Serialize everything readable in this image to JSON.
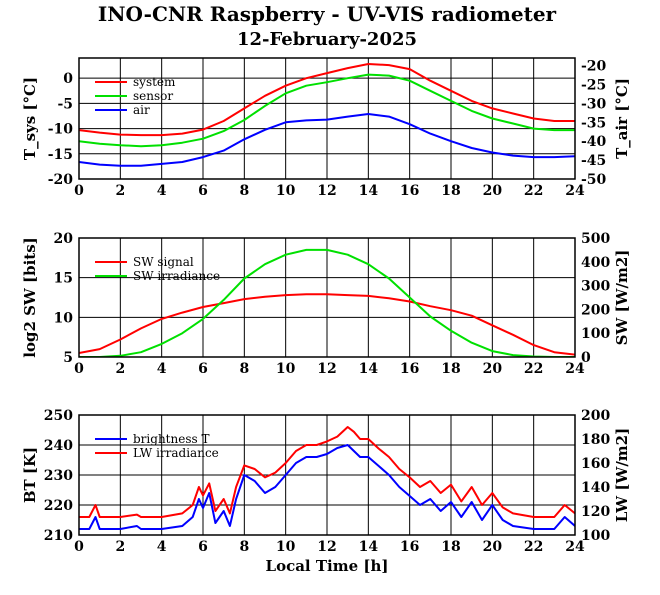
{
  "title": "INO-CNR Raspberry - UV-VIS radiometer",
  "subtitle": "12-February-2025",
  "chart_data": [
    {
      "type": "line",
      "xlabel": "",
      "ylabel": "T_sys [°C]",
      "y2label": "T_air [°C]",
      "xlim": [
        0,
        24
      ],
      "ylim": [
        -20,
        4
      ],
      "y2lim": [
        -50,
        -18
      ],
      "xticks": [
        0,
        2,
        4,
        6,
        8,
        10,
        12,
        14,
        16,
        18,
        20,
        22,
        24
      ],
      "yticks": [
        -20,
        -15,
        -10,
        -5,
        0
      ],
      "y2ticks": [
        -50,
        -45,
        -40,
        -35,
        -30,
        -25,
        -20
      ],
      "grid": true,
      "legend": "top-left",
      "series": [
        {
          "name": "system",
          "color": "#ff0000",
          "axis": "left",
          "x": [
            0,
            1,
            2,
            3,
            4,
            5,
            6,
            7,
            8,
            9,
            10,
            11,
            12,
            13,
            14,
            15,
            16,
            17,
            18,
            19,
            20,
            21,
            22,
            23,
            24
          ],
          "y": [
            -10.3,
            -10.8,
            -11.2,
            -11.3,
            -11.3,
            -11.0,
            -10.2,
            -8.5,
            -6.0,
            -3.5,
            -1.5,
            0.0,
            1.0,
            2.0,
            2.8,
            2.6,
            1.8,
            -0.5,
            -2.5,
            -4.5,
            -6.0,
            -7.0,
            -8.0,
            -8.5,
            -8.5
          ]
        },
        {
          "name": "sensor",
          "color": "#00e000",
          "axis": "left",
          "x": [
            0,
            1,
            2,
            3,
            4,
            5,
            6,
            7,
            8,
            9,
            10,
            11,
            12,
            13,
            14,
            15,
            16,
            17,
            18,
            19,
            20,
            21,
            22,
            23,
            24
          ],
          "y": [
            -12.5,
            -13.0,
            -13.3,
            -13.5,
            -13.3,
            -12.8,
            -12.0,
            -10.5,
            -8.3,
            -5.5,
            -3.0,
            -1.5,
            -0.8,
            0.0,
            0.7,
            0.5,
            -0.5,
            -2.5,
            -4.5,
            -6.5,
            -8.0,
            -9.0,
            -10.0,
            -10.3,
            -10.3
          ]
        },
        {
          "name": "air",
          "color": "#0000ff",
          "axis": "right",
          "x": [
            0,
            1,
            2,
            3,
            4,
            5,
            6,
            7,
            8,
            9,
            10,
            11,
            12,
            13,
            14,
            15,
            16,
            17,
            18,
            19,
            20,
            21,
            22,
            23,
            24
          ],
          "y": [
            -45.5,
            -46.2,
            -46.5,
            -46.5,
            -46.0,
            -45.5,
            -44.2,
            -42.5,
            -39.5,
            -37.0,
            -35.0,
            -34.5,
            -34.3,
            -33.5,
            -32.8,
            -33.5,
            -35.5,
            -38.0,
            -40.0,
            -41.8,
            -43.0,
            -43.8,
            -44.2,
            -44.2,
            -44.0
          ]
        }
      ]
    },
    {
      "type": "line",
      "xlabel": "",
      "ylabel": "log2 SW [bits]",
      "y2label": "SW [W/m2]",
      "xlim": [
        0,
        24
      ],
      "ylim": [
        5,
        20
      ],
      "y2lim": [
        0,
        500
      ],
      "xticks": [
        0,
        2,
        4,
        6,
        8,
        10,
        12,
        14,
        16,
        18,
        20,
        22,
        24
      ],
      "yticks": [
        5,
        10,
        15,
        20
      ],
      "y2ticks": [
        0,
        100,
        200,
        300,
        400,
        500
      ],
      "grid": true,
      "legend": "top-left",
      "series": [
        {
          "name": "SW signal",
          "color": "#ff0000",
          "axis": "left",
          "x": [
            0,
            1,
            2,
            3,
            4,
            5,
            6,
            7,
            8,
            9,
            10,
            11,
            12,
            13,
            14,
            15,
            16,
            17,
            18,
            19,
            20,
            21,
            22,
            23,
            24
          ],
          "y": [
            5.5,
            6.0,
            7.2,
            8.6,
            9.8,
            10.6,
            11.3,
            11.8,
            12.3,
            12.6,
            12.8,
            12.9,
            12.9,
            12.8,
            12.7,
            12.4,
            12.0,
            11.4,
            10.9,
            10.2,
            9.0,
            7.8,
            6.5,
            5.6,
            5.3
          ]
        },
        {
          "name": "SW irradiance",
          "color": "#00e000",
          "axis": "right",
          "x": [
            0,
            1,
            2,
            3,
            4,
            5,
            6,
            7,
            8,
            9,
            10,
            11,
            12,
            13,
            14,
            15,
            16,
            17,
            18,
            19,
            20,
            21,
            22,
            23,
            24
          ],
          "y": [
            0,
            0,
            5,
            20,
            55,
            100,
            160,
            240,
            330,
            390,
            430,
            450,
            450,
            430,
            390,
            330,
            250,
            170,
            110,
            60,
            25,
            8,
            2,
            0,
            0
          ]
        }
      ]
    },
    {
      "type": "line",
      "xlabel": "Local Time [h]",
      "ylabel": "BT [K]",
      "y2label": "LW [W/m2]",
      "xlim": [
        0,
        24
      ],
      "ylim": [
        210,
        250
      ],
      "y2lim": [
        100,
        200
      ],
      "xticks": [
        0,
        2,
        4,
        6,
        8,
        10,
        12,
        14,
        16,
        18,
        20,
        22,
        24
      ],
      "yticks": [
        210,
        220,
        230,
        240,
        250
      ],
      "y2ticks": [
        100,
        120,
        140,
        160,
        180,
        200
      ],
      "grid": true,
      "legend": "top-left",
      "series": [
        {
          "name": "brightness T",
          "color": "#0000ff",
          "axis": "left",
          "x": [
            0,
            0.5,
            0.8,
            1,
            2,
            2.8,
            3,
            4,
            5,
            5.5,
            5.8,
            6,
            6.3,
            6.6,
            7,
            7.3,
            7.6,
            8,
            8.5,
            9,
            9.5,
            10,
            10.5,
            11,
            11.5,
            12,
            12.5,
            13,
            13.3,
            13.6,
            14,
            14.5,
            15,
            15.5,
            16,
            16.5,
            17,
            17.5,
            18,
            18.5,
            19,
            19.5,
            20,
            20.5,
            21,
            22,
            23,
            23.5,
            24
          ],
          "y": [
            212,
            212,
            216,
            212,
            212,
            213,
            212,
            212,
            213,
            216,
            222,
            219,
            224,
            214,
            218,
            213,
            222,
            230,
            228,
            224,
            226,
            230,
            234,
            236,
            236,
            237,
            239,
            240,
            238,
            236,
            236,
            233,
            230,
            226,
            223,
            220,
            222,
            218,
            221,
            216,
            221,
            215,
            220,
            215,
            213,
            212,
            212,
            216,
            213
          ]
        },
        {
          "name": "LW irradiance",
          "color": "#ff0000",
          "axis": "right",
          "x": [
            0,
            0.5,
            0.8,
            1,
            2,
            2.8,
            3,
            4,
            5,
            5.5,
            5.8,
            6,
            6.3,
            6.6,
            7,
            7.3,
            7.6,
            8,
            8.5,
            9,
            9.5,
            10,
            10.5,
            11,
            11.5,
            12,
            12.5,
            13,
            13.3,
            13.6,
            14,
            14.5,
            15,
            15.5,
            16,
            16.5,
            17,
            17.5,
            18,
            18.5,
            19,
            19.5,
            20,
            20.5,
            21,
            22,
            23,
            23.5,
            24
          ],
          "y": [
            115,
            115,
            125,
            115,
            115,
            117,
            115,
            115,
            118,
            125,
            140,
            133,
            143,
            120,
            130,
            118,
            140,
            158,
            155,
            148,
            152,
            160,
            170,
            175,
            175,
            178,
            182,
            190,
            186,
            180,
            180,
            172,
            165,
            155,
            148,
            140,
            145,
            135,
            142,
            128,
            140,
            125,
            135,
            123,
            118,
            115,
            115,
            125,
            118
          ]
        }
      ]
    }
  ]
}
